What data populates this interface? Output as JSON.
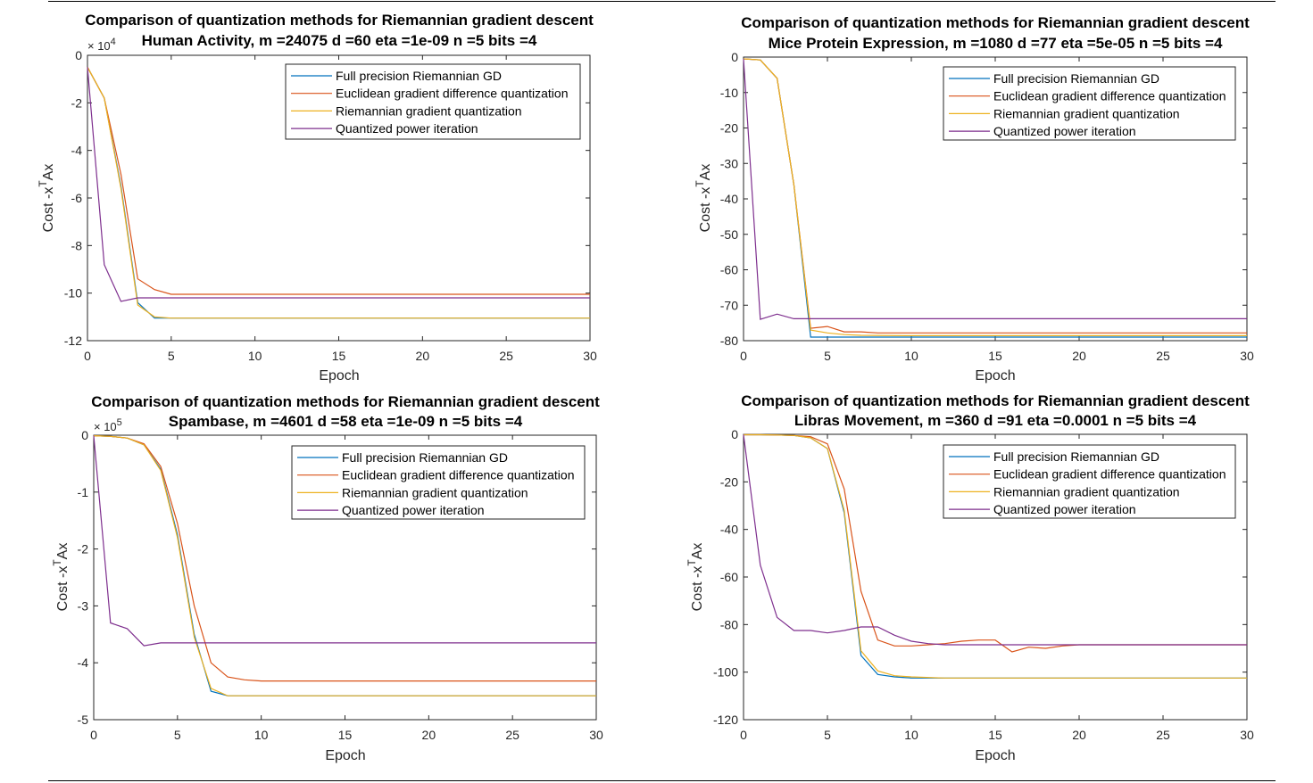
{
  "figure": {
    "legend_entries": [
      "Full precision Riemannian GD",
      "Euclidean gradient difference quantization",
      "Riemannian gradient quantization",
      "Quantized power iteration"
    ],
    "series_colors": [
      "#0072BD",
      "#D95319",
      "#EDB120",
      "#7E2F8E"
    ]
  },
  "chart_data": [
    {
      "type": "line",
      "title": "Comparison of quantization methods for Riemannian gradient descent",
      "subtitle": "Human Activity, m =24075 d =60 eta =1e-09 n =5 bits =4",
      "xlabel": "Epoch",
      "ylabel": "Cost -x",
      "ylabel_sup": "T",
      "ylabel_suffix": "Ax",
      "exponent_base": "× 10",
      "exponent_power": "4",
      "xlim": [
        0,
        30
      ],
      "ylim": [
        -12,
        0
      ],
      "xticks": [
        0,
        5,
        10,
        15,
        20,
        25,
        30
      ],
      "yticks": [
        0,
        -2,
        -4,
        -6,
        -8,
        -10,
        -12
      ],
      "series": [
        {
          "name": "Full precision Riemannian GD",
          "x": [
            0,
            1,
            2,
            3,
            4,
            5,
            30
          ],
          "y": [
            -0.5,
            -1.8,
            -5.5,
            -10.4,
            -11.05,
            -11.05,
            -11.05
          ]
        },
        {
          "name": "Euclidean gradient difference quantization",
          "x": [
            0,
            1,
            2,
            3,
            4,
            5,
            30
          ],
          "y": [
            -0.5,
            -1.8,
            -5.0,
            -9.4,
            -9.85,
            -10.05,
            -10.05
          ]
        },
        {
          "name": "Riemannian gradient quantization",
          "x": [
            0,
            1,
            2,
            3,
            4,
            5,
            30
          ],
          "y": [
            -0.5,
            -1.8,
            -5.6,
            -10.5,
            -11.0,
            -11.05,
            -11.05
          ]
        },
        {
          "name": "Quantized power iteration",
          "x": [
            0,
            1,
            2,
            3,
            4,
            30
          ],
          "y": [
            -0.5,
            -8.8,
            -10.35,
            -10.2,
            -10.2,
            -10.2
          ]
        }
      ]
    },
    {
      "type": "line",
      "title": "Comparison of quantization methods for Riemannian gradient descent",
      "subtitle": "Mice Protein Expression, m =1080 d =77 eta =5e-05 n =5 bits =4",
      "xlabel": "Epoch",
      "ylabel": "Cost -x",
      "ylabel_sup": "T",
      "ylabel_suffix": "Ax",
      "exponent_base": "",
      "exponent_power": "",
      "xlim": [
        0,
        30
      ],
      "ylim": [
        -80,
        0
      ],
      "xticks": [
        0,
        5,
        10,
        15,
        20,
        25,
        30
      ],
      "yticks": [
        0,
        -10,
        -20,
        -30,
        -40,
        -50,
        -60,
        -70,
        -80
      ],
      "series": [
        {
          "name": "Full precision Riemannian GD",
          "x": [
            0,
            1,
            2,
            3,
            4,
            5,
            10,
            30
          ],
          "y": [
            -0.5,
            -0.8,
            -6,
            -36,
            -79,
            -79,
            -79,
            -79
          ]
        },
        {
          "name": "Euclidean gradient difference quantization",
          "x": [
            0,
            1,
            2,
            3,
            4,
            5,
            6,
            7,
            8,
            10,
            30
          ],
          "y": [
            -0.5,
            -0.8,
            -6,
            -36,
            -76.5,
            -76,
            -77.5,
            -77.5,
            -77.8,
            -77.8,
            -77.8
          ]
        },
        {
          "name": "Riemannian gradient quantization",
          "x": [
            0,
            1,
            2,
            3,
            4,
            5,
            6,
            7,
            10,
            30
          ],
          "y": [
            -0.5,
            -0.8,
            -6,
            -36,
            -77,
            -77.8,
            -78.3,
            -78.5,
            -78.6,
            -78.6
          ]
        },
        {
          "name": "Quantized power iteration",
          "x": [
            0,
            1,
            2,
            3,
            4,
            5,
            30
          ],
          "y": [
            -0.5,
            -74,
            -72.5,
            -73.8,
            -73.8,
            -73.8,
            -73.8
          ]
        }
      ]
    },
    {
      "type": "line",
      "title": "Comparison of quantization methods for Riemannian gradient descent",
      "subtitle": "Spambase, m =4601 d =58 eta =1e-09 n =5 bits =4",
      "xlabel": "Epoch",
      "ylabel": "Cost -x",
      "ylabel_sup": "T",
      "ylabel_suffix": "Ax",
      "exponent_base": "× 10",
      "exponent_power": "5",
      "xlim": [
        0,
        30
      ],
      "ylim": [
        -5,
        0
      ],
      "xticks": [
        0,
        5,
        10,
        15,
        20,
        25,
        30
      ],
      "yticks": [
        0,
        -1,
        -2,
        -3,
        -4,
        -5
      ],
      "series": [
        {
          "name": "Full precision Riemannian GD",
          "x": [
            0,
            1,
            2,
            3,
            4,
            5,
            6,
            7,
            8,
            9,
            30
          ],
          "y": [
            -0.01,
            -0.02,
            -0.05,
            -0.17,
            -0.6,
            -1.75,
            -3.5,
            -4.5,
            -4.58,
            -4.58,
            -4.58
          ]
        },
        {
          "name": "Euclidean gradient difference quantization",
          "x": [
            0,
            1,
            2,
            3,
            4,
            5,
            6,
            7,
            8,
            9,
            10,
            30
          ],
          "y": [
            -0.01,
            -0.02,
            -0.05,
            -0.15,
            -0.55,
            -1.55,
            -3.0,
            -4.0,
            -4.25,
            -4.3,
            -4.32,
            -4.32
          ]
        },
        {
          "name": "Riemannian gradient quantization",
          "x": [
            0,
            1,
            2,
            3,
            4,
            5,
            6,
            7,
            8,
            9,
            30
          ],
          "y": [
            -0.01,
            -0.02,
            -0.05,
            -0.17,
            -0.62,
            -1.8,
            -3.55,
            -4.45,
            -4.58,
            -4.58,
            -4.58
          ]
        },
        {
          "name": "Quantized power iteration",
          "x": [
            0,
            1,
            2,
            3,
            4,
            5,
            30
          ],
          "y": [
            -0.01,
            -3.3,
            -3.4,
            -3.7,
            -3.65,
            -3.65,
            -3.65
          ]
        }
      ]
    },
    {
      "type": "line",
      "title": "Comparison of quantization methods for Riemannian gradient descent",
      "subtitle": "Libras Movement, m =360 d =91 eta =0.0001 n =5 bits =4",
      "xlabel": "Epoch",
      "ylabel": "Cost -x",
      "ylabel_sup": "T",
      "ylabel_suffix": "Ax",
      "exponent_base": "",
      "exponent_power": "",
      "xlim": [
        0,
        30
      ],
      "ylim": [
        -120,
        0
      ],
      "xticks": [
        0,
        5,
        10,
        15,
        20,
        25,
        30
      ],
      "yticks": [
        0,
        -20,
        -40,
        -60,
        -80,
        -100,
        -120
      ],
      "series": [
        {
          "name": "Full precision Riemannian GD",
          "x": [
            0,
            1,
            2,
            3,
            4,
            5,
            6,
            7,
            8,
            9,
            10,
            12,
            30
          ],
          "y": [
            -0.2,
            -0.2,
            -0.3,
            -0.5,
            -1.5,
            -6,
            -33,
            -93,
            -101,
            -102,
            -102.5,
            -102.5,
            -102.5
          ]
        },
        {
          "name": "Euclidean gradient difference quantization",
          "x": [
            0,
            1,
            2,
            3,
            4,
            5,
            6,
            7,
            8,
            9,
            10,
            11,
            12,
            13,
            14,
            15,
            16,
            17,
            18,
            19,
            20,
            30
          ],
          "y": [
            -0.2,
            -0.2,
            -0.3,
            -0.5,
            -1,
            -4,
            -23,
            -66,
            -86.5,
            -89,
            -89,
            -88.5,
            -88,
            -87,
            -86.5,
            -86.5,
            -91.5,
            -89.5,
            -90,
            -89,
            -88.5,
            -88.5
          ]
        },
        {
          "name": "Riemannian gradient quantization",
          "x": [
            0,
            1,
            2,
            3,
            4,
            5,
            6,
            7,
            8,
            9,
            10,
            12,
            30
          ],
          "y": [
            -0.2,
            -0.2,
            -0.3,
            -0.5,
            -1.5,
            -6,
            -32,
            -91,
            -99.5,
            -101.5,
            -102,
            -102.5,
            -102.5
          ]
        },
        {
          "name": "Quantized power iteration",
          "x": [
            0,
            1,
            2,
            3,
            4,
            5,
            6,
            7,
            8,
            9,
            10,
            11,
            12,
            14,
            16,
            18,
            20,
            30
          ],
          "y": [
            -0.2,
            -55,
            -77,
            -82.5,
            -82.5,
            -83.5,
            -82.5,
            -81,
            -81,
            -84.5,
            -87,
            -88,
            -88.5,
            -88.5,
            -88.5,
            -88.5,
            -88.5,
            -88.5
          ]
        }
      ]
    }
  ]
}
